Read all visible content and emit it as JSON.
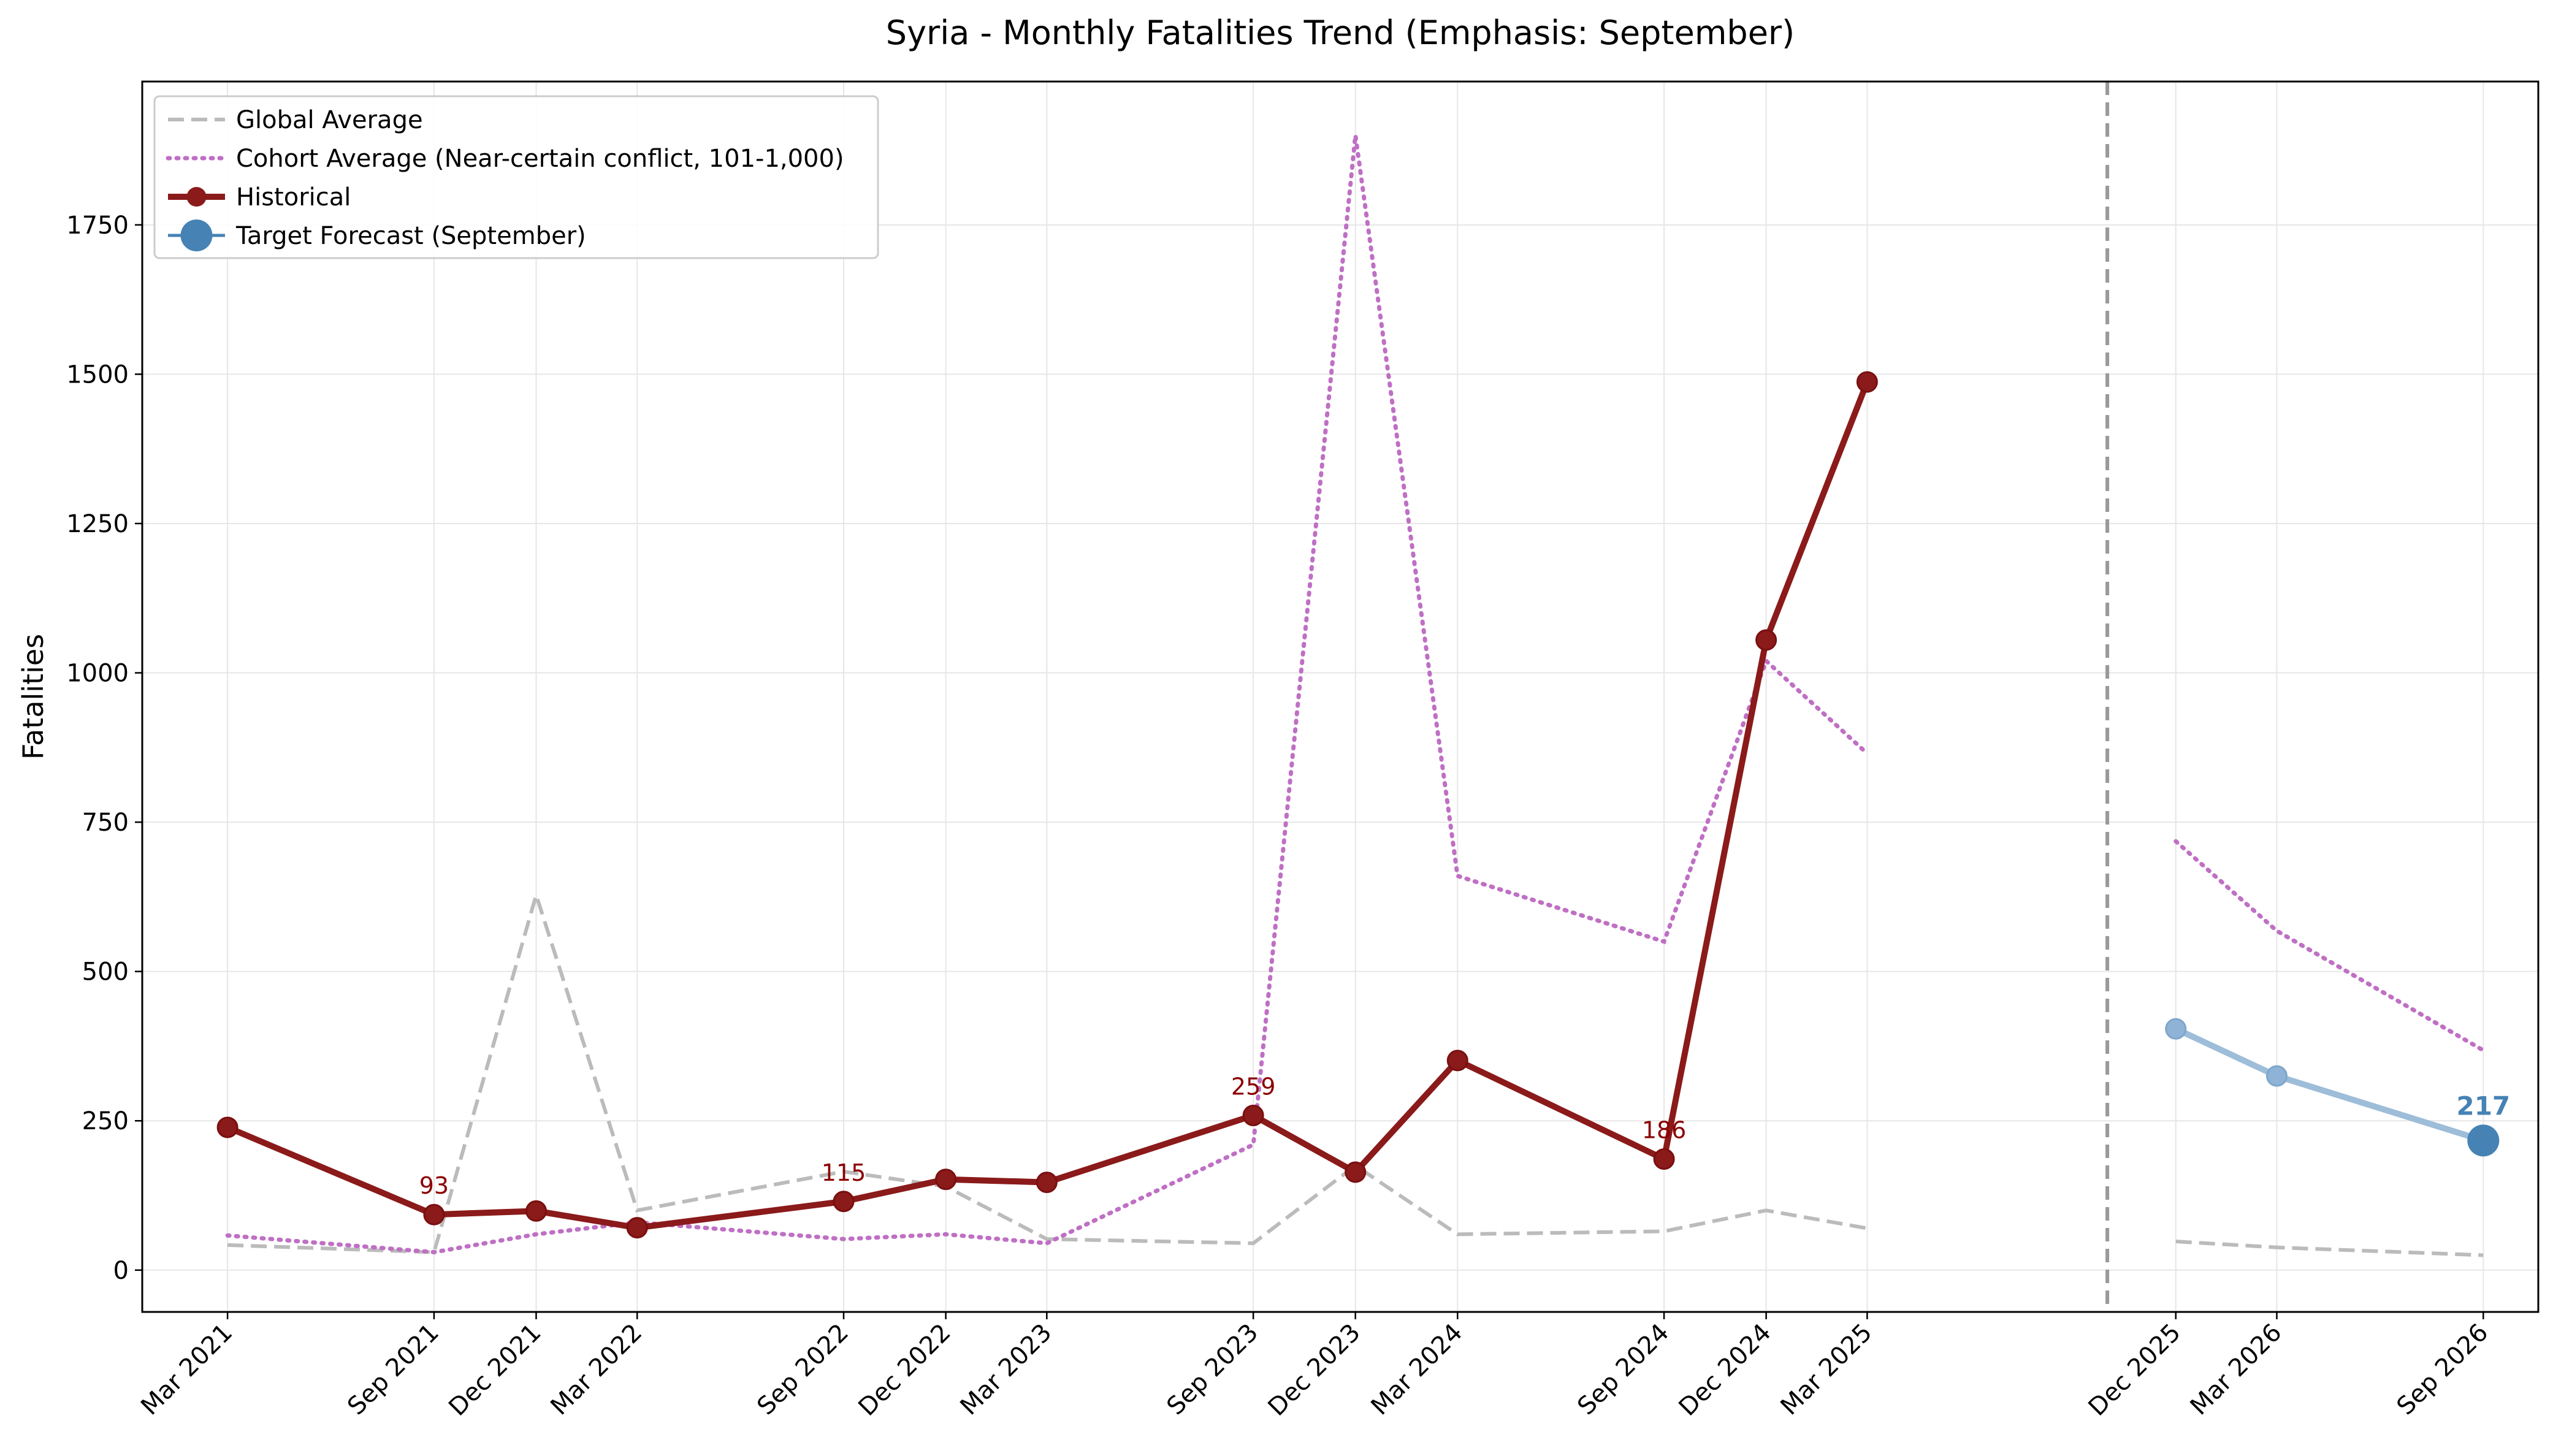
{
  "chart_data": {
    "type": "line",
    "title": "Syria - Monthly Fatalities Trend (Emphasis: September)",
    "xlabel": "",
    "ylabel": "Fatalities",
    "grid": true,
    "legend_position": "upper-left",
    "ylim": [
      -70,
      1990
    ],
    "yticks": [
      0,
      250,
      500,
      750,
      1000,
      1250,
      1500,
      1750
    ],
    "xlim": [
      "2020-12-15",
      "2026-10-20"
    ],
    "x_tick_labels": [
      "Mar 2021",
      "Sep 2021",
      "Dec 2021",
      "Mar 2022",
      "Sep 2022",
      "Dec 2022",
      "Mar 2023",
      "Sep 2023",
      "Dec 2023",
      "Mar 2024",
      "Sep 2024",
      "Dec 2024",
      "Mar 2025",
      "Dec 2025",
      "Mar 2026",
      "Sep 2026"
    ],
    "x_tick_dates": [
      "2021-03-01",
      "2021-09-01",
      "2021-12-01",
      "2022-03-01",
      "2022-09-01",
      "2022-12-01",
      "2023-03-01",
      "2023-09-01",
      "2023-12-01",
      "2024-03-01",
      "2024-09-01",
      "2024-12-01",
      "2025-03-01",
      "2025-12-01",
      "2026-03-01",
      "2026-09-01"
    ],
    "forecast_start": "2025-10-01",
    "series": [
      {
        "name": "Global Average",
        "style": "dashed",
        "color": "#bbbbbb",
        "segments": [
          {
            "x": [
              "2021-03-01",
              "2021-09-01",
              "2021-12-01",
              "2022-03-01",
              "2022-09-01",
              "2022-12-01",
              "2023-03-01",
              "2023-09-01",
              "2023-12-01",
              "2024-03-01",
              "2024-09-01",
              "2024-12-01",
              "2025-03-01"
            ],
            "y": [
              42,
              30,
              628,
              100,
              165,
              140,
              52,
              45,
              175,
              60,
              65,
              100,
              70
            ]
          },
          {
            "x": [
              "2025-12-01",
              "2026-03-01",
              "2026-09-01"
            ],
            "y": [
              48,
              38,
              25
            ]
          }
        ]
      },
      {
        "name": "Cohort Average (Near-certain conflict, 101-1,000)",
        "style": "dotted",
        "color": "#bf6fc4",
        "segments": [
          {
            "x": [
              "2021-03-01",
              "2021-09-01",
              "2021-12-01",
              "2022-03-01",
              "2022-09-01",
              "2022-12-01",
              "2023-03-01",
              "2023-09-01",
              "2023-12-01",
              "2024-03-01",
              "2024-09-01",
              "2024-12-01",
              "2025-03-01"
            ],
            "y": [
              58,
              30,
              60,
              80,
              52,
              60,
              45,
              210,
              1900,
              660,
              550,
              1020,
              865
            ]
          },
          {
            "x": [
              "2025-12-01",
              "2026-03-01",
              "2026-09-01"
            ],
            "y": [
              718,
              568,
              368
            ]
          }
        ]
      },
      {
        "name": "Historical",
        "style": "solid-markers",
        "color": "#8b1a1a",
        "x": [
          "2021-03-01",
          "2021-09-01",
          "2021-12-01",
          "2022-03-01",
          "2022-09-01",
          "2022-12-01",
          "2023-03-01",
          "2023-09-01",
          "2023-12-01",
          "2024-03-01",
          "2024-09-01",
          "2024-12-01",
          "2025-03-01"
        ],
        "y": [
          239,
          93,
          99,
          71,
          115,
          152,
          147,
          259,
          164,
          351,
          186,
          1055,
          1487
        ]
      },
      {
        "name": "",
        "style": "solid-light",
        "color": "#9dbdd9",
        "x": [
          "2025-12-01",
          "2026-03-01",
          "2026-09-01"
        ],
        "y": [
          404,
          325,
          217
        ]
      },
      {
        "name": "Target Forecast (September)",
        "style": "target-marker",
        "color": "#4682b4",
        "x": [
          "2026-09-01"
        ],
        "y": [
          217
        ]
      }
    ],
    "annotations": [
      {
        "text": "93",
        "x": "2021-09-01",
        "y": 93,
        "color": "#8b0000"
      },
      {
        "text": "115",
        "x": "2022-09-01",
        "y": 115,
        "color": "#8b0000"
      },
      {
        "text": "259",
        "x": "2023-09-01",
        "y": 259,
        "color": "#8b0000"
      },
      {
        "text": "186",
        "x": "2024-09-01",
        "y": 186,
        "color": "#8b0000"
      },
      {
        "text": "217",
        "x": "2026-09-01",
        "y": 217,
        "color": "#4682b4",
        "bold": true
      }
    ]
  }
}
